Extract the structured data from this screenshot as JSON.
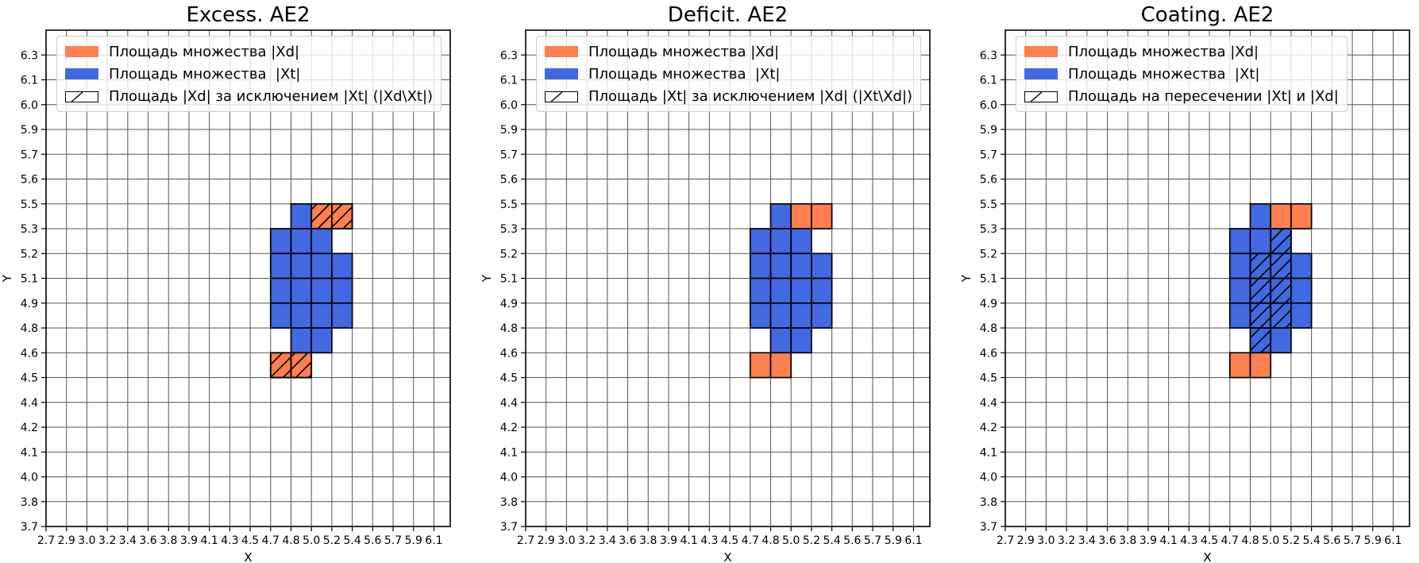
{
  "figure": {
    "background": "#ffffff"
  },
  "colors": {
    "xd_fill": "#ff7f50",
    "xt_fill": "#4169e1",
    "cell_edge": "#000000",
    "grid": "#555555",
    "spine": "#000000",
    "hatch_line": "#000000",
    "legend_border": "#cccccc"
  },
  "chart_data": [
    {
      "type": "heatmap",
      "title": "Excess. AE2",
      "xlabel": "X",
      "ylabel": "Y",
      "grid": true,
      "legend_position": "upper left",
      "x_ticks": [
        "2.7",
        "2.9",
        "3.0",
        "3.2",
        "3.4",
        "3.6",
        "3.8",
        "3.9",
        "4.1",
        "4.3",
        "4.5",
        "4.7",
        "4.8",
        "5.0",
        "5.2",
        "5.4",
        "5.6",
        "5.7",
        "5.9",
        "6.1"
      ],
      "y_ticks": [
        "3.7",
        "3.8",
        "4.0",
        "4.1",
        "4.2",
        "4.4",
        "4.5",
        "4.6",
        "4.8",
        "4.9",
        "5.1",
        "5.2",
        "5.3",
        "5.5",
        "5.6",
        "5.7",
        "5.9",
        "6.0",
        "6.1",
        "6.3"
      ],
      "legend": [
        {
          "swatch": "xd",
          "label": "Площадь множества |Xd|"
        },
        {
          "swatch": "xt",
          "label": "Площадь множества  |Xt|"
        },
        {
          "swatch": "hatch",
          "label": "Площадь |Xd| за исключением |Xt| (|Xd\\Xt|)"
        }
      ],
      "cells_format": "[x_tick_index, y_tick_index, set(xt=blue|xd=orange), hatched(0|1)] — cell spans from tick index to tick index+1",
      "cells": [
        [
          12,
          12,
          "xt",
          0
        ],
        [
          13,
          12,
          "xd",
          1
        ],
        [
          14,
          12,
          "xd",
          1
        ],
        [
          11,
          11,
          "xt",
          0
        ],
        [
          12,
          11,
          "xt",
          0
        ],
        [
          13,
          11,
          "xt",
          0
        ],
        [
          11,
          10,
          "xt",
          0
        ],
        [
          12,
          10,
          "xt",
          0
        ],
        [
          13,
          10,
          "xt",
          0
        ],
        [
          14,
          10,
          "xt",
          0
        ],
        [
          11,
          9,
          "xt",
          0
        ],
        [
          12,
          9,
          "xt",
          0
        ],
        [
          13,
          9,
          "xt",
          0
        ],
        [
          14,
          9,
          "xt",
          0
        ],
        [
          11,
          8,
          "xt",
          0
        ],
        [
          12,
          8,
          "xt",
          0
        ],
        [
          13,
          8,
          "xt",
          0
        ],
        [
          14,
          8,
          "xt",
          0
        ],
        [
          12,
          7,
          "xt",
          0
        ],
        [
          13,
          7,
          "xt",
          0
        ],
        [
          11,
          6,
          "xd",
          1
        ],
        [
          12,
          6,
          "xd",
          1
        ]
      ]
    },
    {
      "type": "heatmap",
      "title": "Deficit. AE2",
      "xlabel": "X",
      "ylabel": "Y",
      "grid": true,
      "legend_position": "upper left",
      "x_ticks": [
        "2.7",
        "2.9",
        "3.0",
        "3.2",
        "3.4",
        "3.6",
        "3.8",
        "3.9",
        "4.1",
        "4.3",
        "4.5",
        "4.7",
        "4.8",
        "5.0",
        "5.2",
        "5.4",
        "5.6",
        "5.7",
        "5.9",
        "6.1"
      ],
      "y_ticks": [
        "3.7",
        "3.8",
        "4.0",
        "4.1",
        "4.2",
        "4.4",
        "4.5",
        "4.6",
        "4.8",
        "4.9",
        "5.1",
        "5.2",
        "5.3",
        "5.5",
        "5.6",
        "5.7",
        "5.9",
        "6.0",
        "6.1",
        "6.3"
      ],
      "legend": [
        {
          "swatch": "xd",
          "label": "Площадь множества |Xd|"
        },
        {
          "swatch": "xt",
          "label": "Площадь множества  |Xt|"
        },
        {
          "swatch": "hatch",
          "label": "Площадь |Xt| за исключением |Xd| (|Xt\\Xd|)"
        }
      ],
      "cells_format": "[x_tick_index, y_tick_index, set(xt=blue|xd=orange), hatched(0|1)] — cell spans from tick index to tick index+1",
      "cells": [
        [
          12,
          12,
          "xt",
          0
        ],
        [
          13,
          12,
          "xd",
          0
        ],
        [
          14,
          12,
          "xd",
          0
        ],
        [
          11,
          11,
          "xt",
          0
        ],
        [
          12,
          11,
          "xt",
          0
        ],
        [
          13,
          11,
          "xt",
          0
        ],
        [
          11,
          10,
          "xt",
          0
        ],
        [
          12,
          10,
          "xt",
          0
        ],
        [
          13,
          10,
          "xt",
          0
        ],
        [
          14,
          10,
          "xt",
          0
        ],
        [
          11,
          9,
          "xt",
          0
        ],
        [
          12,
          9,
          "xt",
          0
        ],
        [
          13,
          9,
          "xt",
          0
        ],
        [
          14,
          9,
          "xt",
          0
        ],
        [
          11,
          8,
          "xt",
          0
        ],
        [
          12,
          8,
          "xt",
          0
        ],
        [
          13,
          8,
          "xt",
          0
        ],
        [
          14,
          8,
          "xt",
          0
        ],
        [
          12,
          7,
          "xt",
          0
        ],
        [
          13,
          7,
          "xt",
          0
        ],
        [
          11,
          6,
          "xd",
          0
        ],
        [
          12,
          6,
          "xd",
          0
        ]
      ]
    },
    {
      "type": "heatmap",
      "title": "Coating. AE2",
      "xlabel": "X",
      "ylabel": "Y",
      "grid": true,
      "legend_position": "upper left",
      "x_ticks": [
        "2.7",
        "2.9",
        "3.0",
        "3.2",
        "3.4",
        "3.6",
        "3.8",
        "3.9",
        "4.1",
        "4.3",
        "4.5",
        "4.7",
        "4.8",
        "5.0",
        "5.2",
        "5.4",
        "5.6",
        "5.7",
        "5.9",
        "6.1"
      ],
      "y_ticks": [
        "3.7",
        "3.8",
        "4.0",
        "4.1",
        "4.2",
        "4.4",
        "4.5",
        "4.6",
        "4.8",
        "4.9",
        "5.1",
        "5.2",
        "5.3",
        "5.5",
        "5.6",
        "5.7",
        "5.9",
        "6.0",
        "6.1",
        "6.3"
      ],
      "legend": [
        {
          "swatch": "xd",
          "label": "Площадь множества |Xd|"
        },
        {
          "swatch": "xt",
          "label": "Площадь множества  |Xt|"
        },
        {
          "swatch": "hatch",
          "label": "Площадь на пересечении |Xt| и |Xd|"
        }
      ],
      "cells_format": "[x_tick_index, y_tick_index, set(xt=blue|xd=orange), hatched(0|1)] — cell spans from tick index to tick index+1",
      "cells": [
        [
          12,
          12,
          "xt",
          0
        ],
        [
          13,
          12,
          "xd",
          0
        ],
        [
          14,
          12,
          "xd",
          0
        ],
        [
          11,
          11,
          "xt",
          0
        ],
        [
          12,
          11,
          "xt",
          0
        ],
        [
          13,
          11,
          "xt",
          1
        ],
        [
          11,
          10,
          "xt",
          0
        ],
        [
          12,
          10,
          "xt",
          1
        ],
        [
          13,
          10,
          "xt",
          1
        ],
        [
          14,
          10,
          "xt",
          0
        ],
        [
          11,
          9,
          "xt",
          0
        ],
        [
          12,
          9,
          "xt",
          1
        ],
        [
          13,
          9,
          "xt",
          1
        ],
        [
          14,
          9,
          "xt",
          0
        ],
        [
          11,
          8,
          "xt",
          0
        ],
        [
          12,
          8,
          "xt",
          1
        ],
        [
          13,
          8,
          "xt",
          1
        ],
        [
          14,
          8,
          "xt",
          0
        ],
        [
          12,
          7,
          "xt",
          1
        ],
        [
          13,
          7,
          "xt",
          0
        ],
        [
          11,
          6,
          "xd",
          0
        ],
        [
          12,
          6,
          "xd",
          0
        ]
      ]
    }
  ]
}
